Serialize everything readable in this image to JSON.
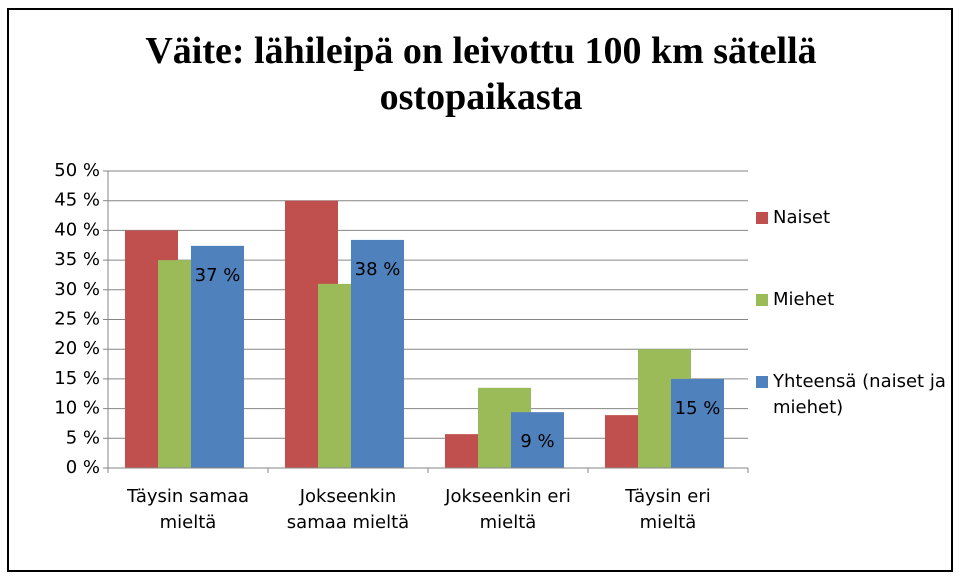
{
  "chart_data": {
    "type": "bar",
    "title": "Väite: lähileipä on leivottu 100 km sätellä ostopaikasta",
    "categories": [
      "Täysin samaa mieltä",
      "Jokseenkin samaa mieltä",
      "Jokseenkin eri mieltä",
      "Täysin eri mieltä"
    ],
    "series": [
      {
        "name": "Naiset",
        "color": "#c0504d",
        "values": [
          40,
          45,
          5.7,
          8.9
        ]
      },
      {
        "name": "Miehet",
        "color": "#9bbb59",
        "values": [
          35,
          31,
          13.5,
          20
        ]
      },
      {
        "name": "Yhteensä (naiset ja miehet)",
        "color": "#4f81bd",
        "values": [
          37.4,
          38.4,
          9.4,
          15
        ],
        "value_labels": [
          "37 %",
          "38 %",
          "9 %",
          "15 %"
        ]
      }
    ],
    "ylim": [
      0,
      50
    ],
    "yticks": [
      {
        "value": 0,
        "label": "0 %"
      },
      {
        "value": 5,
        "label": "5 %"
      },
      {
        "value": 10,
        "label": "10 %"
      },
      {
        "value": 15,
        "label": "15 %"
      },
      {
        "value": 20,
        "label": "20 %"
      },
      {
        "value": 25,
        "label": "25 %"
      },
      {
        "value": 30,
        "label": "30 %"
      },
      {
        "value": 35,
        "label": "35 %"
      },
      {
        "value": 40,
        "label": "40 %"
      },
      {
        "value": 45,
        "label": "45 %"
      },
      {
        "value": 50,
        "label": "50 %"
      }
    ],
    "grid": true,
    "legend": "right"
  }
}
